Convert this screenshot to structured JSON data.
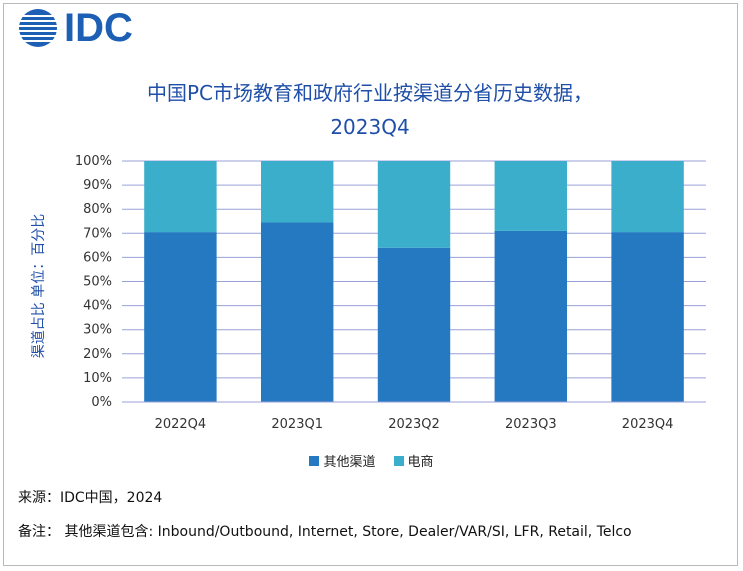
{
  "logo": {
    "text": "IDC"
  },
  "title_line1": "中国PC市场教育和政府行业按渠道分省历史数据，",
  "title_line2": "2023Q4",
  "footer": {
    "source": "来源：IDC中国，2024",
    "note": "备注：  其他渠道包含: Inbound/Outbound, Internet, Store, Dealer/VAR/SI, LFR, Retail, Telco"
  },
  "colors": {
    "other": "#2479c1",
    "ecommerce": "#3aaecb",
    "grid": "#9aa0d8",
    "title": "#1f4fa8"
  },
  "chart_data": {
    "type": "bar",
    "stacked": true,
    "title": "中国PC市场教育和政府行业按渠道分省历史数据，2023Q4",
    "ylabel": "渠道占比 单位：百分比",
    "xlabel": "",
    "categories": [
      "2022Q4",
      "2023Q1",
      "2023Q2",
      "2023Q3",
      "2023Q4"
    ],
    "series": [
      {
        "name": "其他渠道",
        "values": [
          70.5,
          74.5,
          64.0,
          71.0,
          70.5
        ]
      },
      {
        "name": "电商",
        "values": [
          29.5,
          25.5,
          36.0,
          29.0,
          29.5
        ]
      }
    ],
    "ylim": [
      0,
      100
    ],
    "yticks": [
      "0%",
      "10%",
      "20%",
      "30%",
      "40%",
      "50%",
      "60%",
      "70%",
      "80%",
      "90%",
      "100%"
    ],
    "grid": true,
    "legend_position": "bottom"
  }
}
